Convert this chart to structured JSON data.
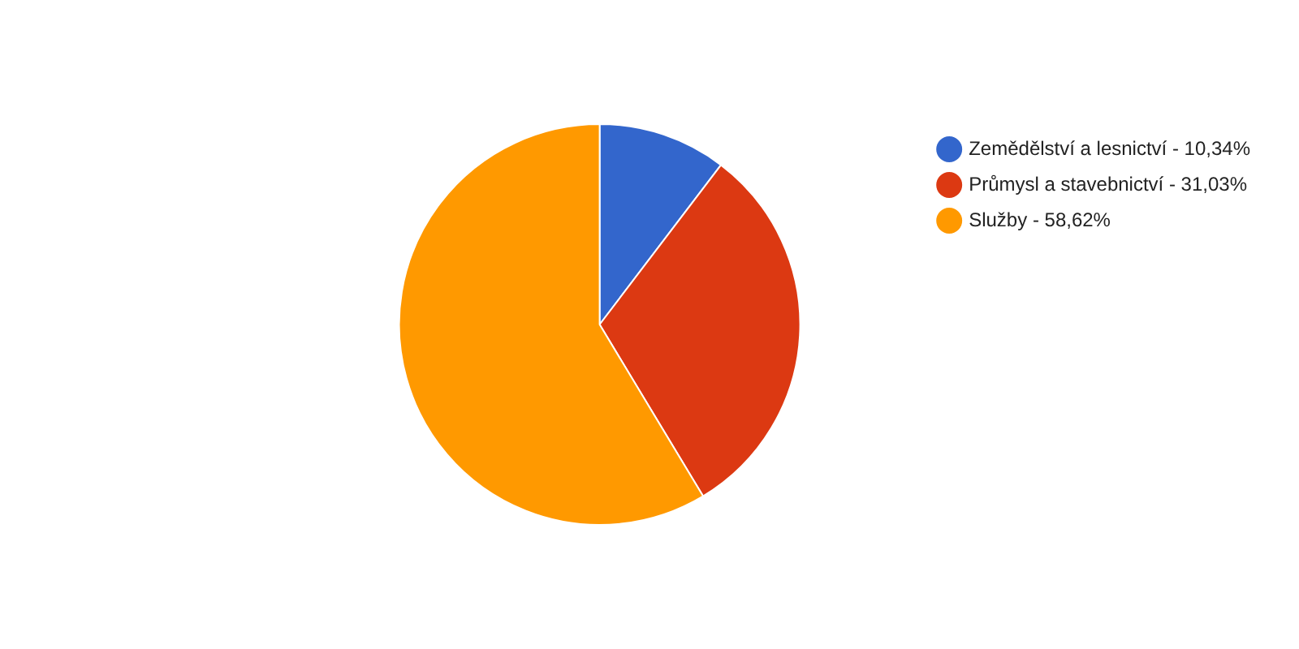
{
  "chart_data": {
    "type": "pie",
    "categories": [
      "Zemědělství a lesnictví - 10,34%",
      "Průmysl a stavebnictví - 31,03%",
      "Služby - 58,62%"
    ],
    "values": [
      10.34,
      31.03,
      58.62
    ],
    "colors": [
      "#3366cc",
      "#dc3912",
      "#ff9900"
    ],
    "legend": "right"
  }
}
